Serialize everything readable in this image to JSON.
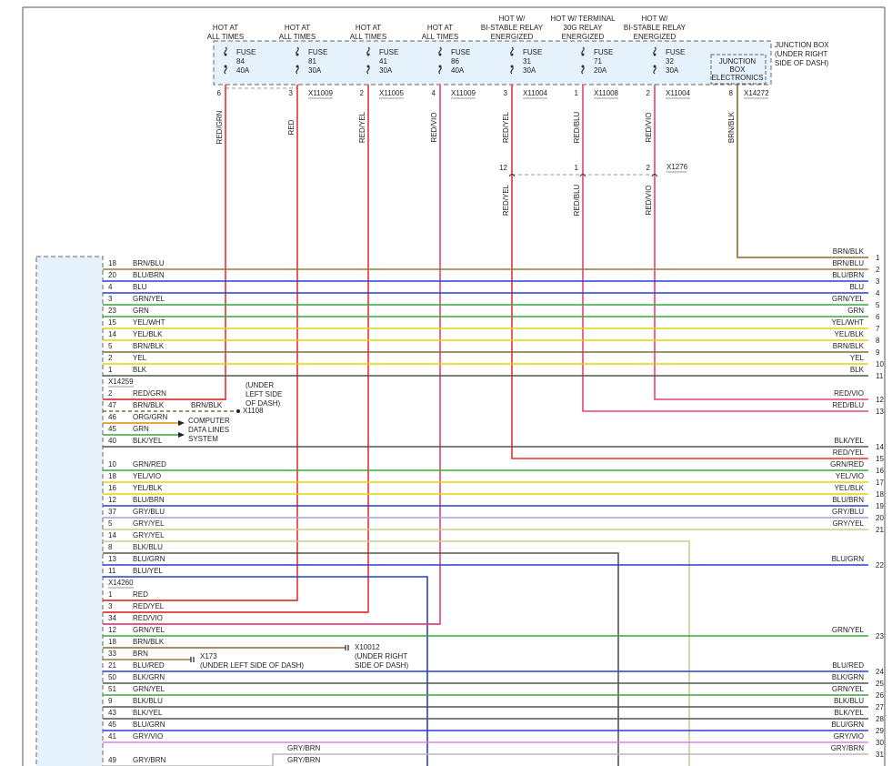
{
  "junction_box": {
    "label": [
      "JUNCTION BOX",
      "(UNDER RIGHT",
      "SIDE OF DASH)"
    ],
    "electronics": {
      "label": [
        "JUNCTION",
        "BOX",
        "ELECTRONICS"
      ],
      "pin": "8",
      "connector": "X14272",
      "wire": "BRN/BLK",
      "right": {
        "wire": "BRN/BLK",
        "pin": "1"
      }
    }
  },
  "fuses": [
    {
      "header": [
        "HOT AT",
        "ALL TIMES"
      ],
      "name": "FUSE",
      "number": "84",
      "rating": "40A",
      "pin": "6",
      "wire": "RED/GRN"
    },
    {
      "header": [
        "HOT AT",
        "ALL TIMES"
      ],
      "name": "FUSE",
      "number": "81",
      "rating": "30A",
      "pin": "3",
      "connector": "X11009",
      "wire": "RED"
    },
    {
      "header": [
        "HOT AT",
        "ALL TIMES"
      ],
      "name": "FUSE",
      "number": "41",
      "rating": "30A",
      "pin": "2",
      "connector": "X11005",
      "wire": "RED/YEL"
    },
    {
      "header": [
        "HOT AT",
        "ALL TIMES"
      ],
      "name": "FUSE",
      "number": "86",
      "rating": "40A",
      "pin": "4",
      "connector": "X11009",
      "wire": "RED/VIO"
    },
    {
      "header": [
        "HOT W/",
        "BI-STABLE RELAY",
        "ENERGIZED"
      ],
      "name": "FUSE",
      "number": "31",
      "rating": "30A",
      "pin": "3",
      "connector": "X11004",
      "wire": "RED/YEL",
      "splice_pin": "12",
      "splice_wire": "RED/YEL",
      "right": {
        "wire": "RED/YEL",
        "pin": "15"
      }
    },
    {
      "header": [
        "HOT W/ TERMINAL",
        "30G RELAY",
        "ENERGIZED"
      ],
      "name": "FUSE",
      "number": "71",
      "rating": "20A",
      "pin": "1",
      "connector": "X11008",
      "wire": "RED/BLU",
      "splice_pin": "1",
      "splice_wire": "RED/BLU",
      "right": {
        "wire": "RED/BLU",
        "pin": "13"
      }
    },
    {
      "header": [
        "HOT W/",
        "BI-STABLE RELAY",
        "ENERGIZED"
      ],
      "name": "FUSE",
      "number": "32",
      "rating": "30A",
      "pin": "2",
      "connector": "X11004",
      "wire": "RED/VIO",
      "splice_pin": "2",
      "splice_wire": "RED/VIO",
      "right": {
        "wire": "RED/VIO",
        "pin": "12"
      }
    }
  ],
  "splice_connector": "X1276",
  "rows": [
    {
      "pin": "18",
      "wire": "BRN/BLU",
      "right": {
        "wire": "BRN/BLU",
        "pin": "2"
      }
    },
    {
      "pin": "20",
      "wire": "BLU/BRN",
      "right": {
        "wire": "BLU/BRN",
        "pin": "3"
      }
    },
    {
      "pin": "4",
      "wire": "BLU",
      "right": {
        "wire": "BLU",
        "pin": "4"
      }
    },
    {
      "pin": "3",
      "wire": "GRN/YEL",
      "right": {
        "wire": "GRN/YEL",
        "pin": "5"
      }
    },
    {
      "pin": "23",
      "wire": "GRN",
      "right": {
        "wire": "GRN",
        "pin": "6"
      }
    },
    {
      "pin": "15",
      "wire": "YEL/WHT",
      "right": {
        "wire": "YEL/WHT",
        "pin": "7"
      }
    },
    {
      "pin": "14",
      "wire": "YEL/BLK",
      "right": {
        "wire": "YEL/BLK",
        "pin": "8"
      }
    },
    {
      "pin": "5",
      "wire": "BRN/BLK",
      "right": {
        "wire": "BRN/BLK",
        "pin": "9"
      }
    },
    {
      "pin": "2",
      "wire": "YEL",
      "right": {
        "wire": "YEL",
        "pin": "10"
      }
    },
    {
      "pin": "1",
      "wire": "BLK",
      "right": {
        "wire": "BLK",
        "pin": "11"
      }
    },
    {
      "connector": "X14259"
    },
    {
      "pin": "2",
      "wire": "RED/GRN"
    },
    {
      "pin": "47",
      "wire": "BRN/BLK"
    },
    {
      "pin": "46",
      "wire": "ORG/GRN"
    },
    {
      "pin": "45",
      "wire": "GRN"
    },
    {
      "pin": "40",
      "wire": "BLK/YEL",
      "right": {
        "wire": "BLK/YEL",
        "pin": "14"
      }
    },
    {
      "pin": "10",
      "wire": "GRN/RED",
      "right": {
        "wire": "GRN/RED",
        "pin": "16"
      }
    },
    {
      "pin": "18",
      "wire": "YEL/VIO",
      "right": {
        "wire": "YEL/VIO",
        "pin": "17"
      }
    },
    {
      "pin": "16",
      "wire": "YEL/BLK",
      "right": {
        "wire": "YEL/BLK",
        "pin": "18"
      }
    },
    {
      "pin": "12",
      "wire": "BLU/BRN",
      "right": {
        "wire": "BLU/BRN",
        "pin": "19"
      }
    },
    {
      "pin": "37",
      "wire": "GRY/BLU",
      "right": {
        "wire": "GRY/BLU",
        "pin": "20"
      }
    },
    {
      "pin": "5",
      "wire": "GRY/YEL",
      "right": {
        "wire": "GRY/YEL",
        "pin": "21"
      }
    },
    {
      "pin": "14",
      "wire": "GRY/YEL"
    },
    {
      "pin": "8",
      "wire": "BLK/BLU"
    },
    {
      "pin": "13",
      "wire": "BLU/GRN",
      "right": {
        "wire": "BLU/GRN",
        "pin": "22"
      }
    },
    {
      "pin": "11",
      "wire": "BLU/YEL"
    },
    {
      "connector": "X14260"
    },
    {
      "pin": "1",
      "wire": "RED"
    },
    {
      "pin": "3",
      "wire": "RED/YEL"
    },
    {
      "pin": "34",
      "wire": "RED/VIO"
    },
    {
      "pin": "12",
      "wire": "GRN/YEL",
      "right": {
        "wire": "GRN/YEL",
        "pin": "23"
      }
    },
    {
      "pin": "18",
      "wire": "BRN/BLK"
    },
    {
      "pin": "33",
      "wire": "BRN"
    },
    {
      "pin": "21",
      "wire": "BLU/RED",
      "right": {
        "wire": "BLU/RED",
        "pin": "24"
      }
    },
    {
      "pin": "50",
      "wire": "BLK/GRN",
      "right": {
        "wire": "BLK/GRN",
        "pin": "25"
      }
    },
    {
      "pin": "51",
      "wire": "GRN/YEL",
      "right": {
        "wire": "GRN/YEL",
        "pin": "26"
      }
    },
    {
      "pin": "9",
      "wire": "BLK/BLU",
      "right": {
        "wire": "BLK/BLU",
        "pin": "27"
      }
    },
    {
      "pin": "43",
      "wire": "BLK/YEL",
      "right": {
        "wire": "BLK/YEL",
        "pin": "28"
      }
    },
    {
      "pin": "45",
      "wire": "BLU/GRN",
      "right": {
        "wire": "BLU/GRN",
        "pin": "29"
      }
    },
    {
      "pin": "41",
      "wire": "GRY/VIO",
      "right": {
        "wire": "GRY/VIO",
        "pin": "30"
      }
    },
    {
      "pin": "49",
      "wire": "GRY/BRN",
      "mid_label": "GRY/BRN"
    }
  ],
  "extra_wire": {
    "wire": "GRY/BRN",
    "right": {
      "wire": "GRY/BRN",
      "pin": "31"
    }
  },
  "x1108": {
    "wire": "BRN/BLK",
    "connector": "X1108",
    "location": [
      "(UNDER",
      "LEFT SIDE",
      "OF DASH)"
    ]
  },
  "data_lines": [
    "COMPUTER",
    "DATA LINES",
    "SYSTEM"
  ],
  "x10012": {
    "connector": "X10012",
    "location": [
      "(UNDER RIGHT",
      "SIDE OF DASH)"
    ]
  },
  "x173": {
    "connector": "X173",
    "location": [
      "(UNDER LEFT SIDE OF DASH)"
    ]
  }
}
